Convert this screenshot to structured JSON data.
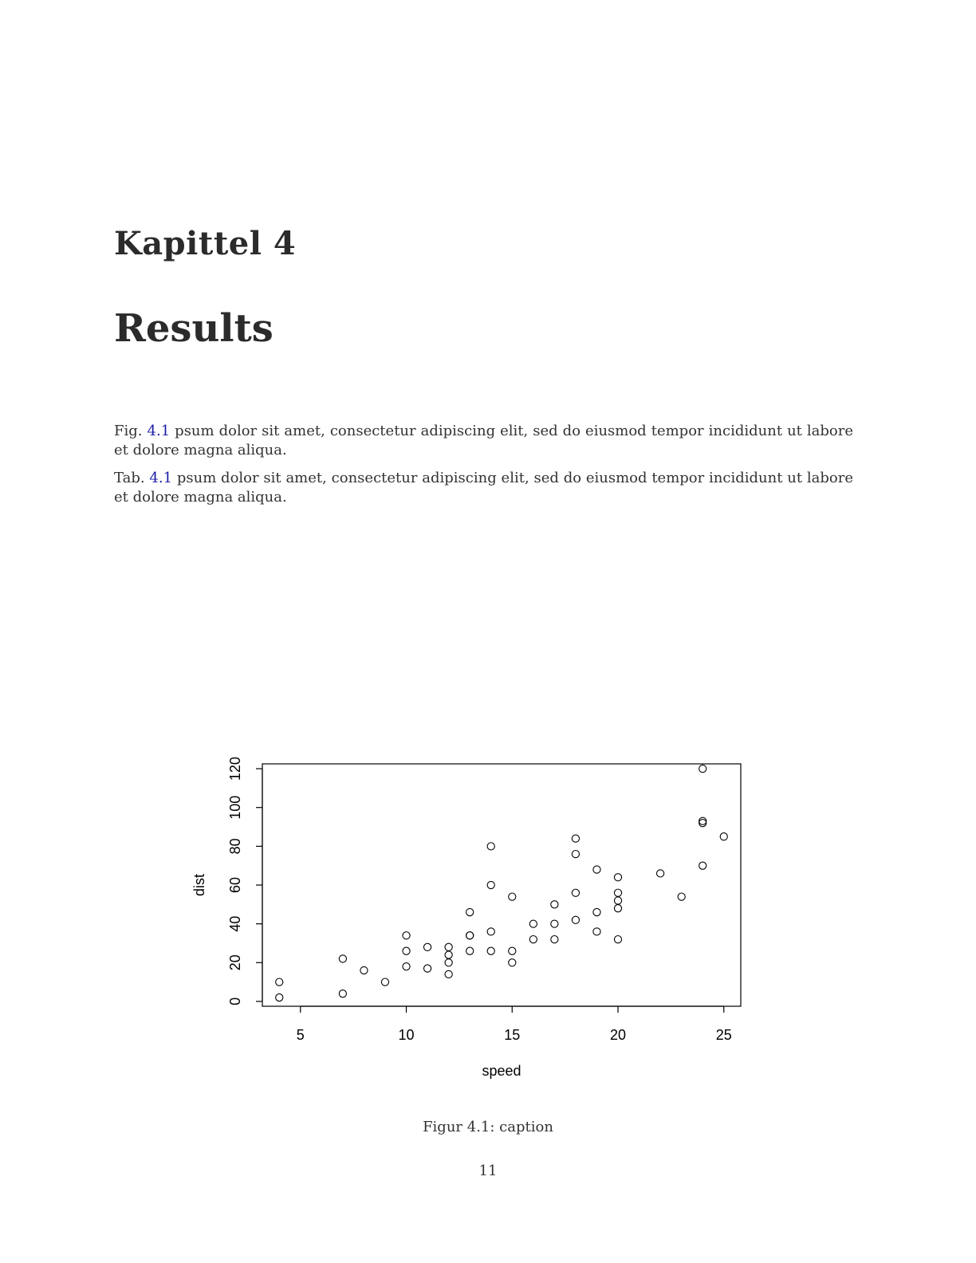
{
  "chapter": {
    "label": "Kapittel 4",
    "title": "Results"
  },
  "paragraphs": [
    {
      "prefix": "Fig. ",
      "ref": "4.1",
      "text": " psum dolor sit amet, consectetur adipiscing elit, sed do eiusmod tempor incididunt ut labore et dolore magna aliqua."
    },
    {
      "prefix": "Tab. ",
      "ref": "4.1",
      "text": " psum dolor sit amet, consectetur adipiscing elit, sed do eiusmod tempor incididunt ut labore et dolore magna aliqua."
    }
  ],
  "chart_data": {
    "type": "scatter",
    "xlabel": "speed",
    "ylabel": "dist",
    "xlim": [
      3.2,
      25.8
    ],
    "ylim": [
      -2.5,
      122.5
    ],
    "xticks": [
      5,
      10,
      15,
      20,
      25
    ],
    "yticks": [
      0,
      20,
      40,
      60,
      80,
      100,
      120
    ],
    "grid": false,
    "points": [
      [
        4,
        2
      ],
      [
        4,
        10
      ],
      [
        7,
        4
      ],
      [
        7,
        22
      ],
      [
        8,
        16
      ],
      [
        9,
        10
      ],
      [
        10,
        18
      ],
      [
        10,
        26
      ],
      [
        10,
        34
      ],
      [
        11,
        17
      ],
      [
        11,
        28
      ],
      [
        12,
        14
      ],
      [
        12,
        20
      ],
      [
        12,
        24
      ],
      [
        12,
        28
      ],
      [
        13,
        26
      ],
      [
        13,
        34
      ],
      [
        13,
        34
      ],
      [
        13,
        46
      ],
      [
        14,
        26
      ],
      [
        14,
        36
      ],
      [
        14,
        60
      ],
      [
        14,
        80
      ],
      [
        15,
        20
      ],
      [
        15,
        26
      ],
      [
        15,
        54
      ],
      [
        16,
        32
      ],
      [
        16,
        40
      ],
      [
        17,
        32
      ],
      [
        17,
        40
      ],
      [
        17,
        50
      ],
      [
        18,
        42
      ],
      [
        18,
        56
      ],
      [
        18,
        76
      ],
      [
        18,
        84
      ],
      [
        19,
        36
      ],
      [
        19,
        46
      ],
      [
        19,
        68
      ],
      [
        20,
        32
      ],
      [
        20,
        48
      ],
      [
        20,
        52
      ],
      [
        20,
        56
      ],
      [
        20,
        64
      ],
      [
        22,
        66
      ],
      [
        23,
        54
      ],
      [
        24,
        70
      ],
      [
        24,
        92
      ],
      [
        24,
        93
      ],
      [
        24,
        120
      ],
      [
        25,
        85
      ]
    ]
  },
  "figure": {
    "caption": "Figur 4.1: caption"
  },
  "page_number": "11"
}
